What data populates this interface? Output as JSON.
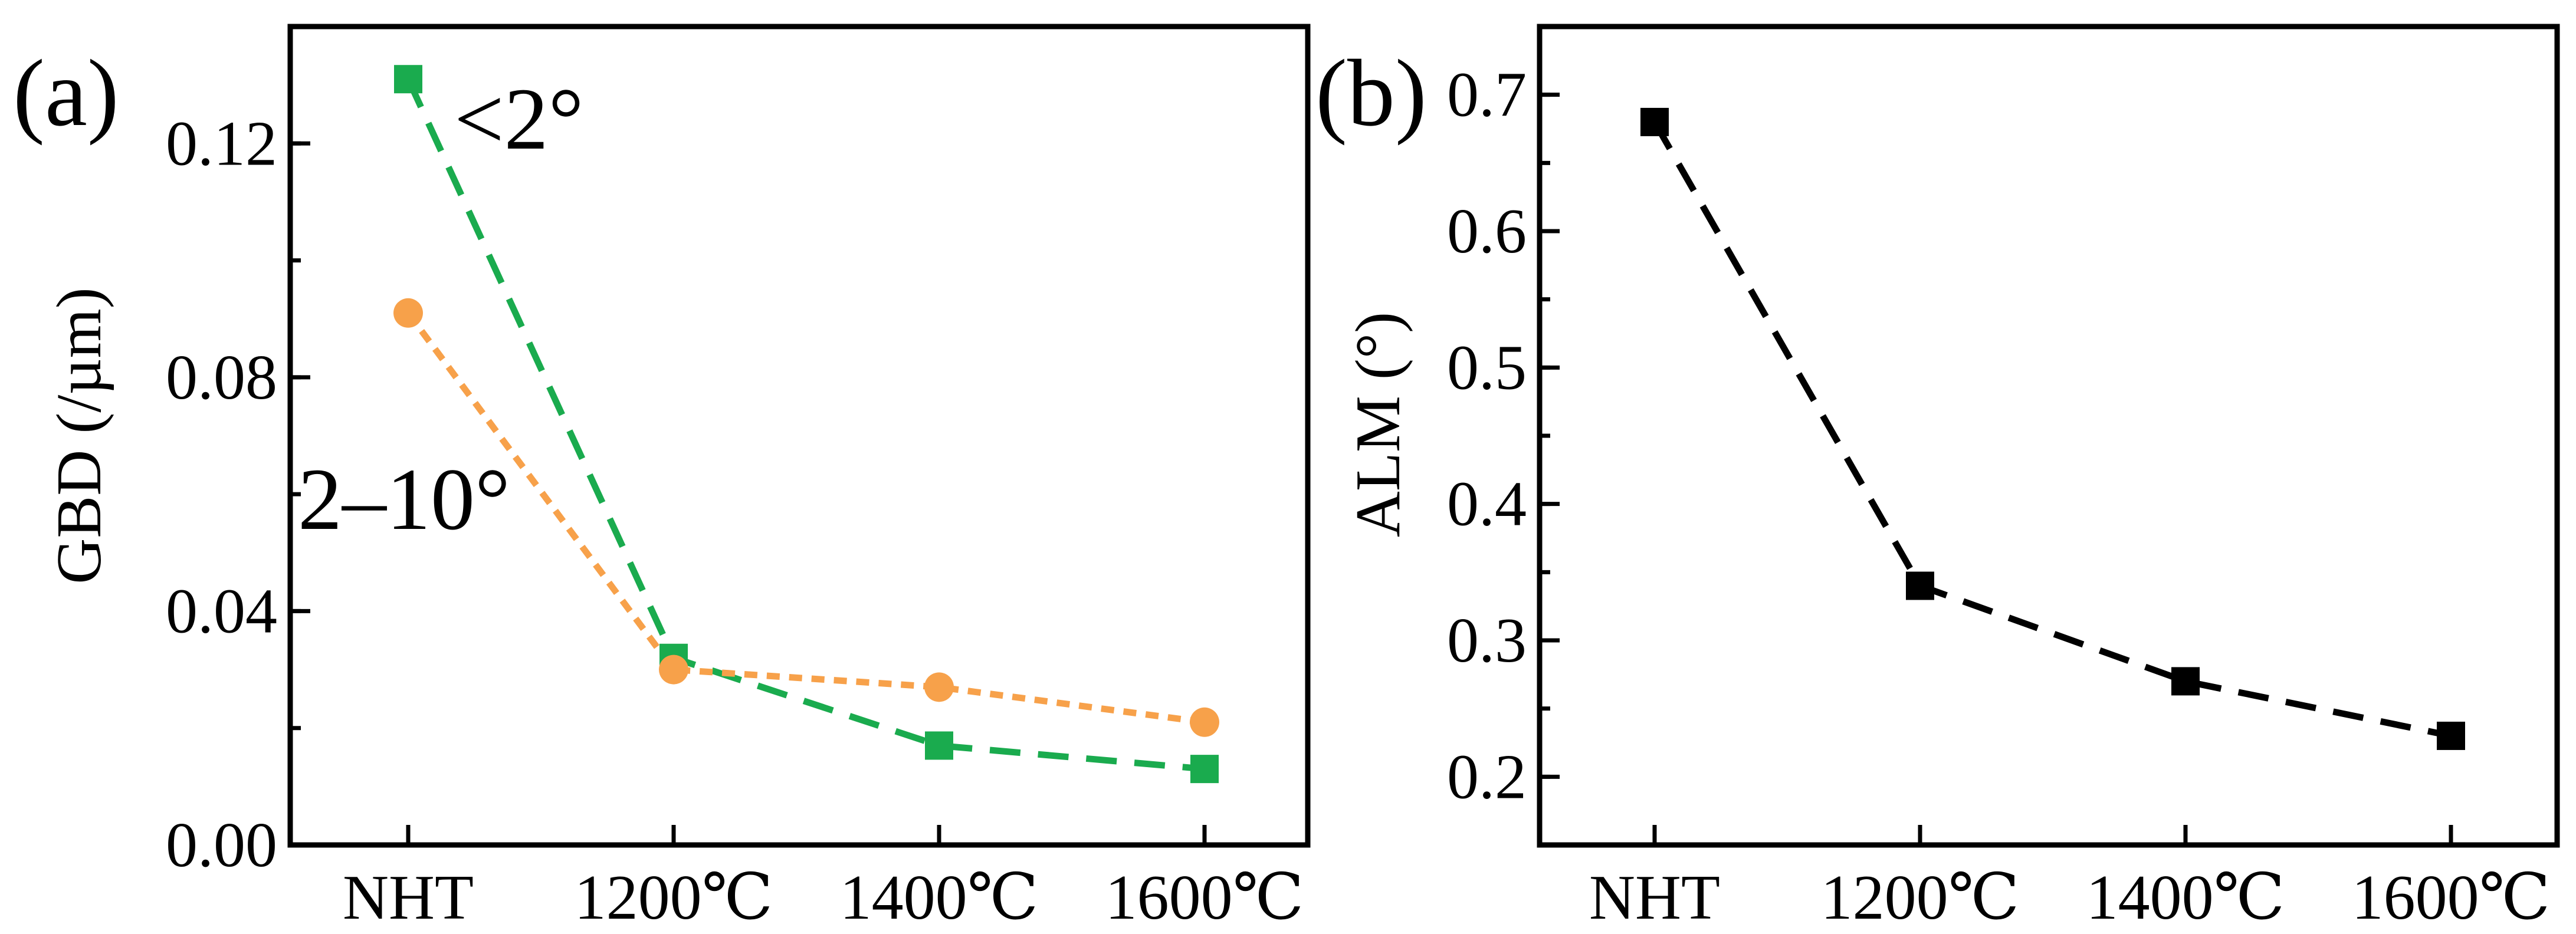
{
  "chart_data": [
    {
      "type": "line",
      "panel_label": "(a)",
      "title": "",
      "xlabel": "",
      "ylabel": "GBD (/µm)",
      "categories": [
        "NHT",
        "1200℃",
        "1400℃",
        "1600℃"
      ],
      "ylim": [
        0.0,
        0.14
      ],
      "yticks": [
        "0.00",
        "0.04",
        "0.08",
        "0.12"
      ],
      "series": [
        {
          "name": "<2°",
          "marker": "square",
          "line": "dashed",
          "color": "#1aab4e",
          "values": [
            0.131,
            0.032,
            0.017,
            0.013
          ]
        },
        {
          "name": "2–10°",
          "marker": "circle",
          "line": "dotted",
          "color": "#f7a14a",
          "values": [
            0.091,
            0.03,
            0.027,
            0.021
          ]
        }
      ],
      "annotations": [
        "<2°",
        "2–10°"
      ]
    },
    {
      "type": "line",
      "panel_label": "(b)",
      "title": "",
      "xlabel": "",
      "ylabel": "ALM (°)",
      "categories": [
        "NHT",
        "1200℃",
        "1400℃",
        "1600℃"
      ],
      "ylim": [
        0.15,
        0.75
      ],
      "yticks": [
        "0.2",
        "0.3",
        "0.4",
        "0.5",
        "0.6",
        "0.7"
      ],
      "series": [
        {
          "name": "ALM",
          "marker": "square",
          "line": "dashed",
          "color": "#000000",
          "values": [
            0.68,
            0.34,
            0.27,
            0.23
          ]
        }
      ]
    }
  ]
}
